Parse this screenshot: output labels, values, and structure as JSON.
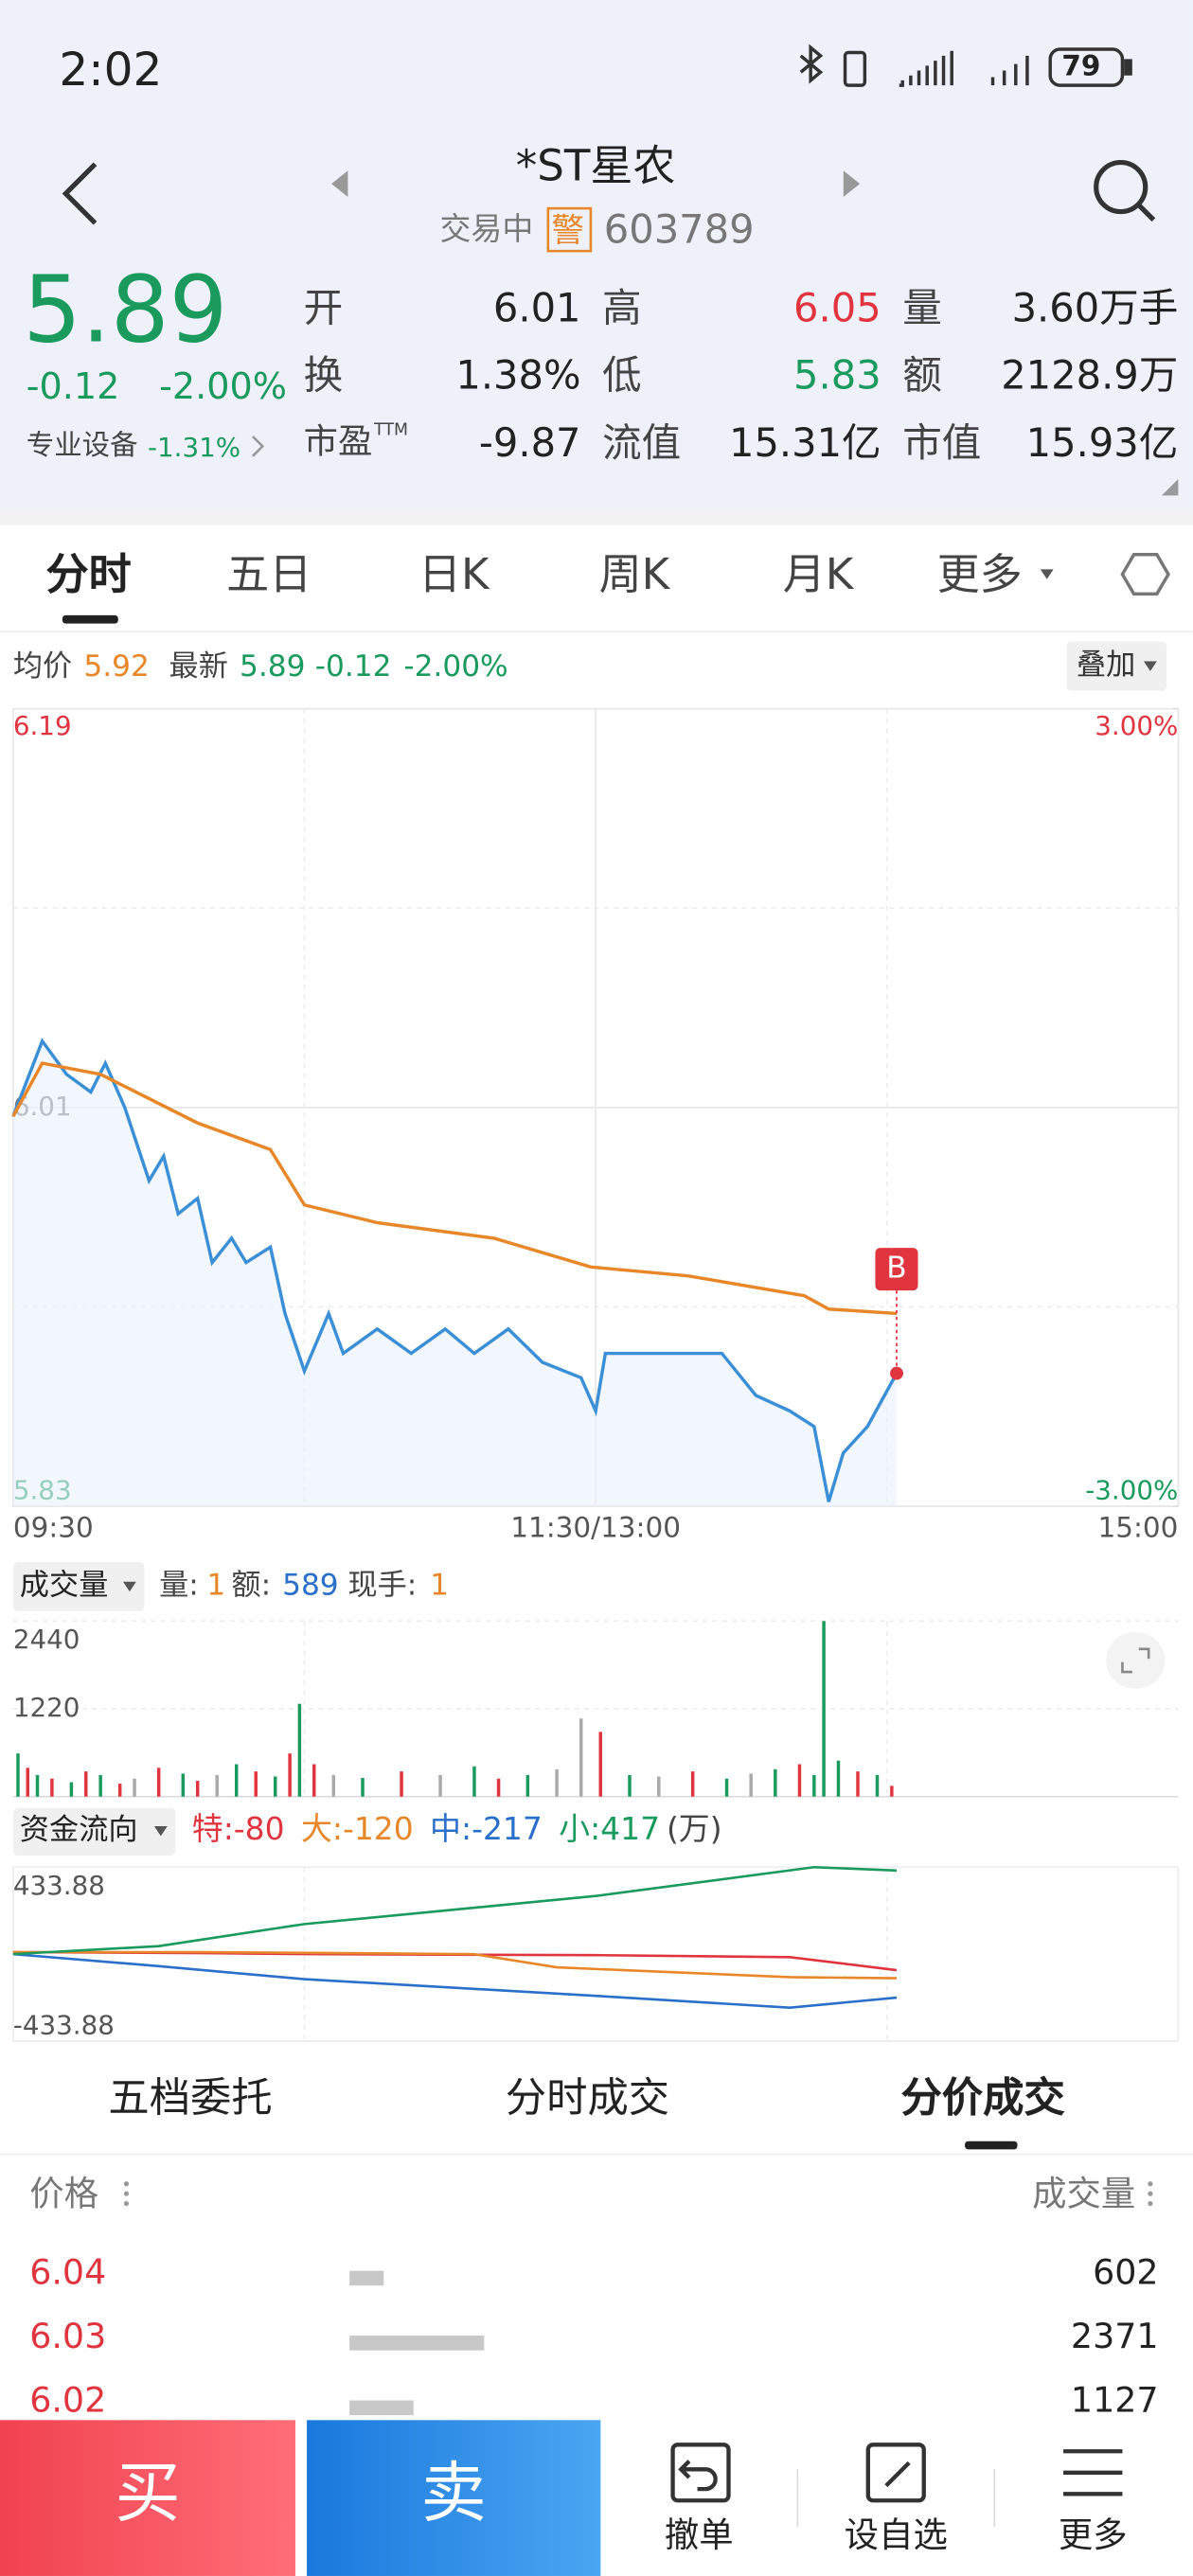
{
  "status_bar": {
    "time": "2:02",
    "battery": "79"
  },
  "header": {
    "name": "*ST星农",
    "status": "交易中",
    "warning": "警",
    "code": "603789"
  },
  "quote": {
    "price": "5.89",
    "change": "-0.12",
    "change_pct": "-2.00%",
    "sector": "专业设备",
    "sector_change": "-1.31%",
    "rows": [
      [
        {
          "label": "开",
          "value": "6.01"
        },
        {
          "label": "高",
          "value": "6.05"
        },
        {
          "label": "量",
          "value": "3.60万手"
        }
      ],
      [
        {
          "label": "换",
          "value": "1.38%"
        },
        {
          "label": "低",
          "value": "5.83"
        },
        {
          "label": "额",
          "value": "2128.9万"
        }
      ],
      [
        {
          "label": "市盈",
          "sup": "TTM",
          "value": "-9.87"
        },
        {
          "label": "流值",
          "value": "15.31亿"
        },
        {
          "label": "市值",
          "value": "15.93亿"
        }
      ]
    ]
  },
  "tabs": [
    "分时",
    "五日",
    "日K",
    "周K",
    "月K",
    "更多"
  ],
  "legend": {
    "avg_label": "均价",
    "avg": "5.92",
    "latest_label": "最新",
    "latest": "5.89",
    "change": "-0.12",
    "change_pct": "-2.00%",
    "overlay": "叠加"
  },
  "chart_data": {
    "type": "line",
    "marker": "B",
    "xlim": [
      0,
      240
    ],
    "xticks": [
      {
        "value": 0,
        "label": "09:30"
      },
      {
        "value": 120,
        "label": "11:30/13:00"
      },
      {
        "value": 240,
        "label": "15:00"
      }
    ],
    "ylim": [
      5.83,
      6.19
    ],
    "yticks": [
      5.83,
      6.01,
      6.19
    ],
    "y2lim": [
      -3,
      3
    ],
    "y2ticks": [
      {
        "value": -3,
        "label": "-3.00%"
      },
      {
        "value": 3,
        "label": "3.00%"
      }
    ],
    "series": [
      {
        "color": "#3a8fd6",
        "x": [
          0,
          6,
          11,
          16,
          19,
          23,
          28,
          31,
          34,
          38,
          41,
          45,
          48,
          53,
          56,
          60,
          65,
          68,
          75,
          82,
          89,
          95,
          102,
          109,
          117,
          120,
          122,
          133,
          146,
          153,
          160,
          165,
          168,
          171,
          176,
          182
        ],
        "values": [
          6.006,
          6.04,
          6.025,
          6.017,
          6.03,
          6.01,
          5.977,
          5.988,
          5.962,
          5.969,
          5.94,
          5.951,
          5.94,
          5.947,
          5.917,
          5.891,
          5.917,
          5.899,
          5.91,
          5.899,
          5.91,
          5.899,
          5.91,
          5.895,
          5.888,
          5.873,
          5.899,
          5.899,
          5.899,
          5.88,
          5.873,
          5.866,
          5.832,
          5.854,
          5.866,
          5.89
        ]
      },
      {
        "color": "#e8872a",
        "x": [
          0,
          6,
          18,
          28,
          38,
          53,
          60,
          75,
          99,
          119,
          139,
          163,
          168,
          182
        ],
        "values": [
          6.006,
          6.03,
          6.025,
          6.014,
          6.003,
          5.991,
          5.966,
          5.958,
          5.951,
          5.938,
          5.934,
          5.925,
          5.919,
          5.917
        ]
      }
    ]
  },
  "volume_chart": {
    "type": "bar",
    "title": "成交量",
    "vol_label": "量:",
    "vol": "1",
    "amount_label": "额:",
    "amount": "589",
    "hand_label": "现手:",
    "hand": "1",
    "ylim": [
      0,
      2440
    ],
    "yticks": [
      1220,
      2440
    ],
    "x": [
      1,
      3,
      5,
      8,
      12,
      15,
      18,
      22,
      25,
      30,
      35,
      38,
      42,
      46,
      50,
      54,
      57,
      59,
      62,
      66,
      72,
      80,
      88,
      95,
      100,
      106,
      112,
      117,
      121,
      127,
      133,
      140,
      147,
      152,
      157,
      162,
      165,
      167,
      170,
      174,
      178,
      181
    ],
    "values": [
      600,
      400,
      300,
      250,
      200,
      350,
      300,
      180,
      250,
      400,
      320,
      220,
      300,
      450,
      350,
      280,
      600,
      1290,
      450,
      300,
      260,
      350,
      300,
      420,
      250,
      300,
      380,
      1085,
      900,
      300,
      280,
      350,
      250,
      320,
      380,
      450,
      300,
      2440,
      500,
      350,
      300,
      150
    ],
    "colors": [
      "#1a9a5c",
      "#e0353f",
      "#1a9a5c",
      "#e0353f",
      "#1a9a5c",
      "#e0353f",
      "#1a9a5c",
      "#e0353f",
      "#aaaaaa",
      "#e0353f",
      "#1a9a5c",
      "#e0353f",
      "#aaaaaa",
      "#1a9a5c",
      "#e0353f",
      "#1a9a5c",
      "#e0353f",
      "#1a9a5c",
      "#e0353f",
      "#aaaaaa",
      "#1a9a5c",
      "#e0353f",
      "#aaaaaa",
      "#1a9a5c",
      "#e0353f",
      "#1a9a5c",
      "#aaaaaa",
      "#aaaaaa",
      "#e0353f",
      "#1a9a5c",
      "#aaaaaa",
      "#e0353f",
      "#1a9a5c",
      "#aaaaaa",
      "#1a9a5c",
      "#e0353f",
      "#1a9a5c",
      "#1a9a5c",
      "#1a9a5c",
      "#e0353f",
      "#1a9a5c",
      "#e0353f"
    ]
  },
  "flow_chart": {
    "type": "line",
    "title": "资金流向",
    "unit": "(万)",
    "ylim": [
      -433.88,
      433.88
    ],
    "yticks": [
      -433.88,
      433.88
    ],
    "series": [
      {
        "name": "特:",
        "total": -80,
        "color": "#e0353f",
        "x": [
          0,
          40,
          60,
          120,
          160,
          182
        ],
        "values": [
          10,
          5,
          0,
          -5,
          -15,
          -80
        ]
      },
      {
        "name": "大:",
        "total": -120,
        "color": "#e8872a",
        "x": [
          0,
          40,
          95,
          112,
          160,
          182
        ],
        "values": [
          10,
          10,
          0,
          -66,
          -115,
          -120
        ]
      },
      {
        "name": "中:",
        "total": -217,
        "color": "#2a6fc9",
        "x": [
          0,
          30,
          60,
          120,
          160,
          182
        ],
        "values": [
          0,
          -60,
          -125,
          -208,
          -267,
          -217
        ]
      },
      {
        "name": "小:",
        "total": 417,
        "color": "#1a9a5c",
        "x": [
          0,
          30,
          60,
          120,
          165,
          182
        ],
        "values": [
          0,
          40,
          150,
          290,
          433.88,
          417
        ]
      }
    ]
  },
  "trade_table": {
    "tabs": [
      "五档委托",
      "分时成交",
      "分价成交"
    ],
    "headers": [
      "价格",
      "成交量"
    ],
    "rows": [
      [
        "6.04",
        "602"
      ],
      [
        "6.03",
        "2371"
      ],
      [
        "6.02",
        "1127"
      ]
    ]
  },
  "bottom_bar": {
    "buy": "买",
    "sell": "卖",
    "actions": [
      "撤单",
      "设自选",
      "更多"
    ]
  }
}
